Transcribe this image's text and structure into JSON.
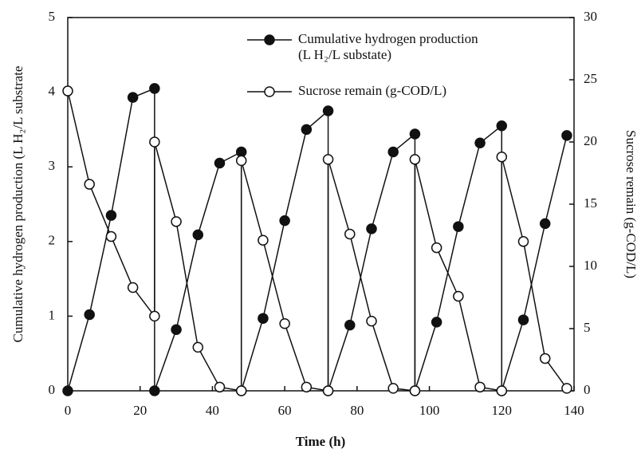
{
  "chart_data": {
    "type": "line",
    "x_label": "Time (h)",
    "y_label": "Cumulative hydrogen production (L H₂/L substrate",
    "y2_label": "Sucrose remain (g-COD/L)",
    "xlim": [
      0,
      140
    ],
    "xticks": [
      0,
      20,
      40,
      60,
      80,
      100,
      120,
      140
    ],
    "ylim": [
      0,
      5
    ],
    "yticks": [
      0,
      1,
      2,
      3,
      4,
      5
    ],
    "y2lim": [
      0,
      30
    ],
    "y2ticks": [
      0,
      5,
      10,
      15,
      20,
      25,
      30
    ],
    "series": [
      {
        "name": "Cumulative hydrogen production (L H₂/L substate)",
        "color": "#111111",
        "marker": "filled",
        "x": [
          0,
          6,
          12,
          18,
          24,
          24,
          30,
          36,
          42,
          48,
          48,
          54,
          60,
          66,
          72,
          72,
          78,
          84,
          90,
          96,
          96,
          102,
          108,
          114,
          120,
          120,
          126,
          132,
          138
        ],
        "values": [
          0,
          1.02,
          2.35,
          3.93,
          4.05,
          0,
          0.82,
          2.09,
          3.05,
          3.2,
          0,
          0.97,
          2.28,
          3.5,
          3.75,
          0,
          0.88,
          2.17,
          3.2,
          3.44,
          0,
          0.92,
          2.2,
          3.32,
          3.55,
          0,
          0.95,
          2.24,
          3.42
        ]
      },
      {
        "name": "Sucrose remain (g-COD/L)",
        "color": "#111111",
        "marker": "open",
        "axis": "y2",
        "x": [
          0,
          6,
          12,
          18,
          24,
          24,
          30,
          36,
          42,
          48,
          48,
          54,
          60,
          66,
          72,
          72,
          78,
          84,
          90,
          96,
          96,
          102,
          108,
          114,
          120,
          120,
          126,
          132,
          138
        ],
        "values": [
          24.1,
          16.6,
          12.4,
          8.3,
          6.0,
          20.0,
          13.6,
          3.5,
          0.3,
          0,
          18.5,
          12.1,
          5.4,
          0.3,
          0,
          18.6,
          12.6,
          5.6,
          0.2,
          0,
          18.6,
          11.5,
          7.6,
          0.3,
          0,
          18.8,
          12.0,
          2.6,
          0.2
        ]
      }
    ]
  }
}
